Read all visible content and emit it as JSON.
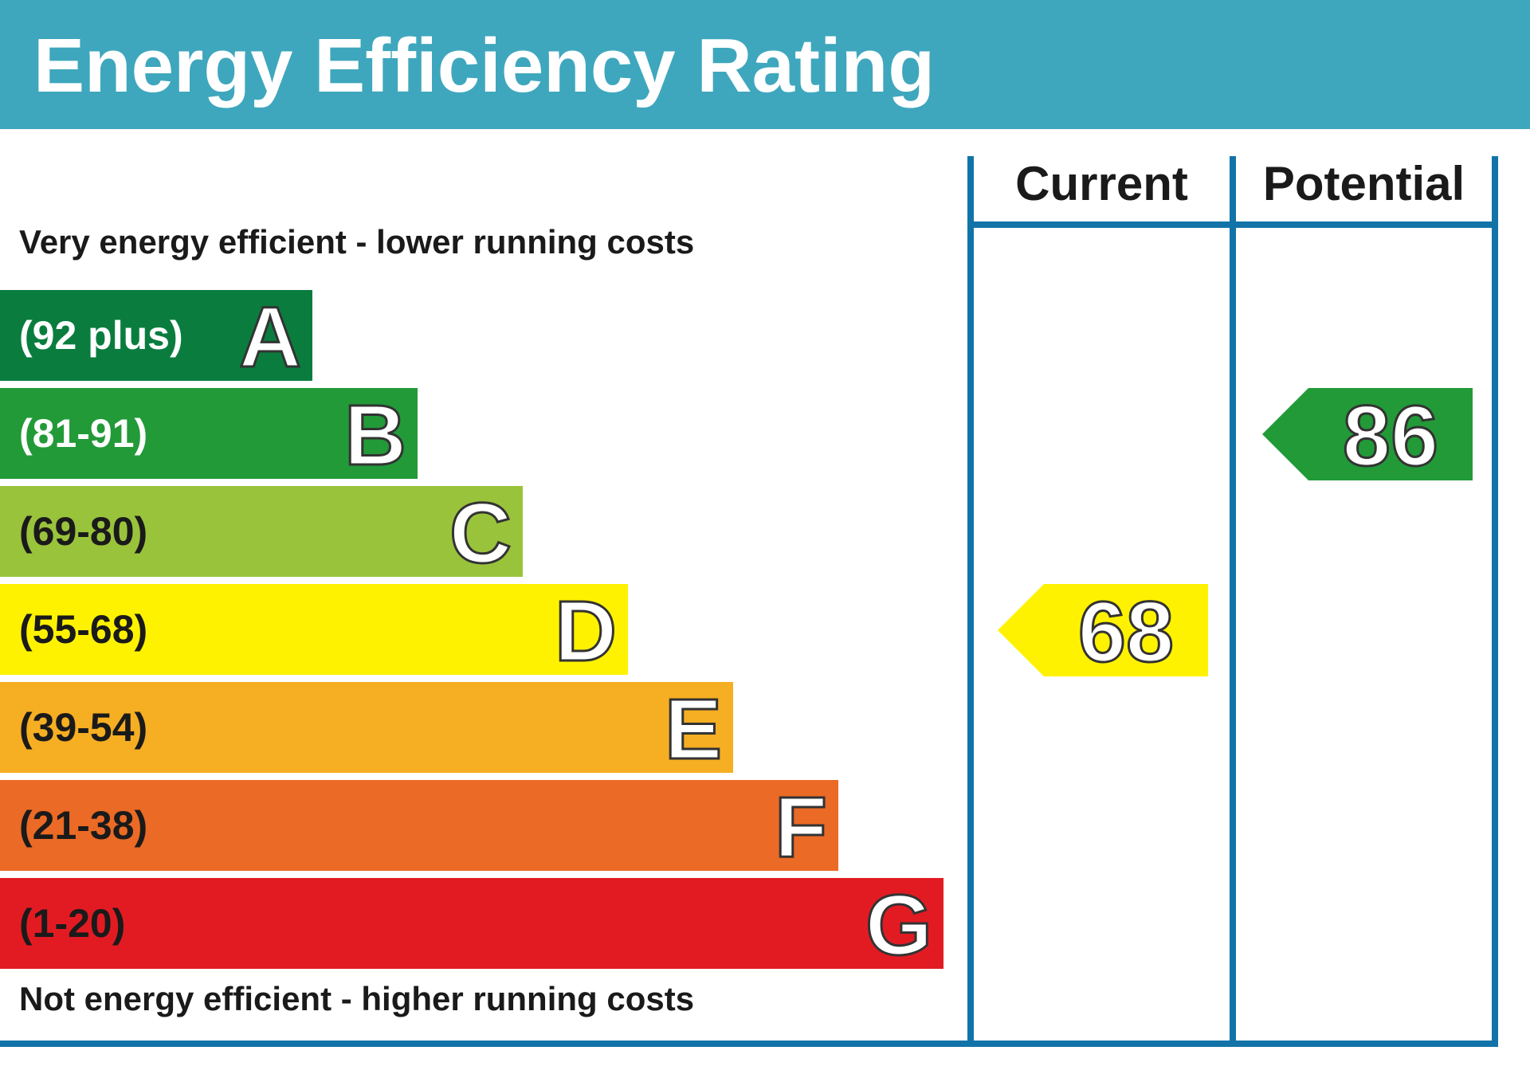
{
  "chart_data": {
    "type": "bar",
    "title": "Energy Efficiency Rating",
    "top_caption": "Very energy efficient - lower running costs",
    "bottom_caption": "Not energy efficient - higher running costs",
    "bands": [
      {
        "letter": "A",
        "range": "(92 plus)",
        "color": "#0a7d3e",
        "text_color": "#ffffff"
      },
      {
        "letter": "B",
        "range": "(81-91)",
        "color": "#229a38",
        "text_color": "#ffffff"
      },
      {
        "letter": "C",
        "range": "(69-80)",
        "color": "#9ac33c",
        "text_color": "#1a1a1a"
      },
      {
        "letter": "D",
        "range": "(55-68)",
        "color": "#fff200",
        "text_color": "#1a1a1a"
      },
      {
        "letter": "E",
        "range": "(39-54)",
        "color": "#f6ae22",
        "text_color": "#1a1a1a"
      },
      {
        "letter": "F",
        "range": "(21-38)",
        "color": "#eb6a25",
        "text_color": "#1a1a1a"
      },
      {
        "letter": "G",
        "range": "(1-20)",
        "color": "#e21b23",
        "text_color": "#1a1a1a"
      }
    ],
    "columns": [
      "Current",
      "Potential"
    ],
    "current": {
      "value": 68,
      "band": "D",
      "color": "#fff200"
    },
    "potential": {
      "value": 86,
      "band": "B",
      "color": "#229a38"
    }
  }
}
